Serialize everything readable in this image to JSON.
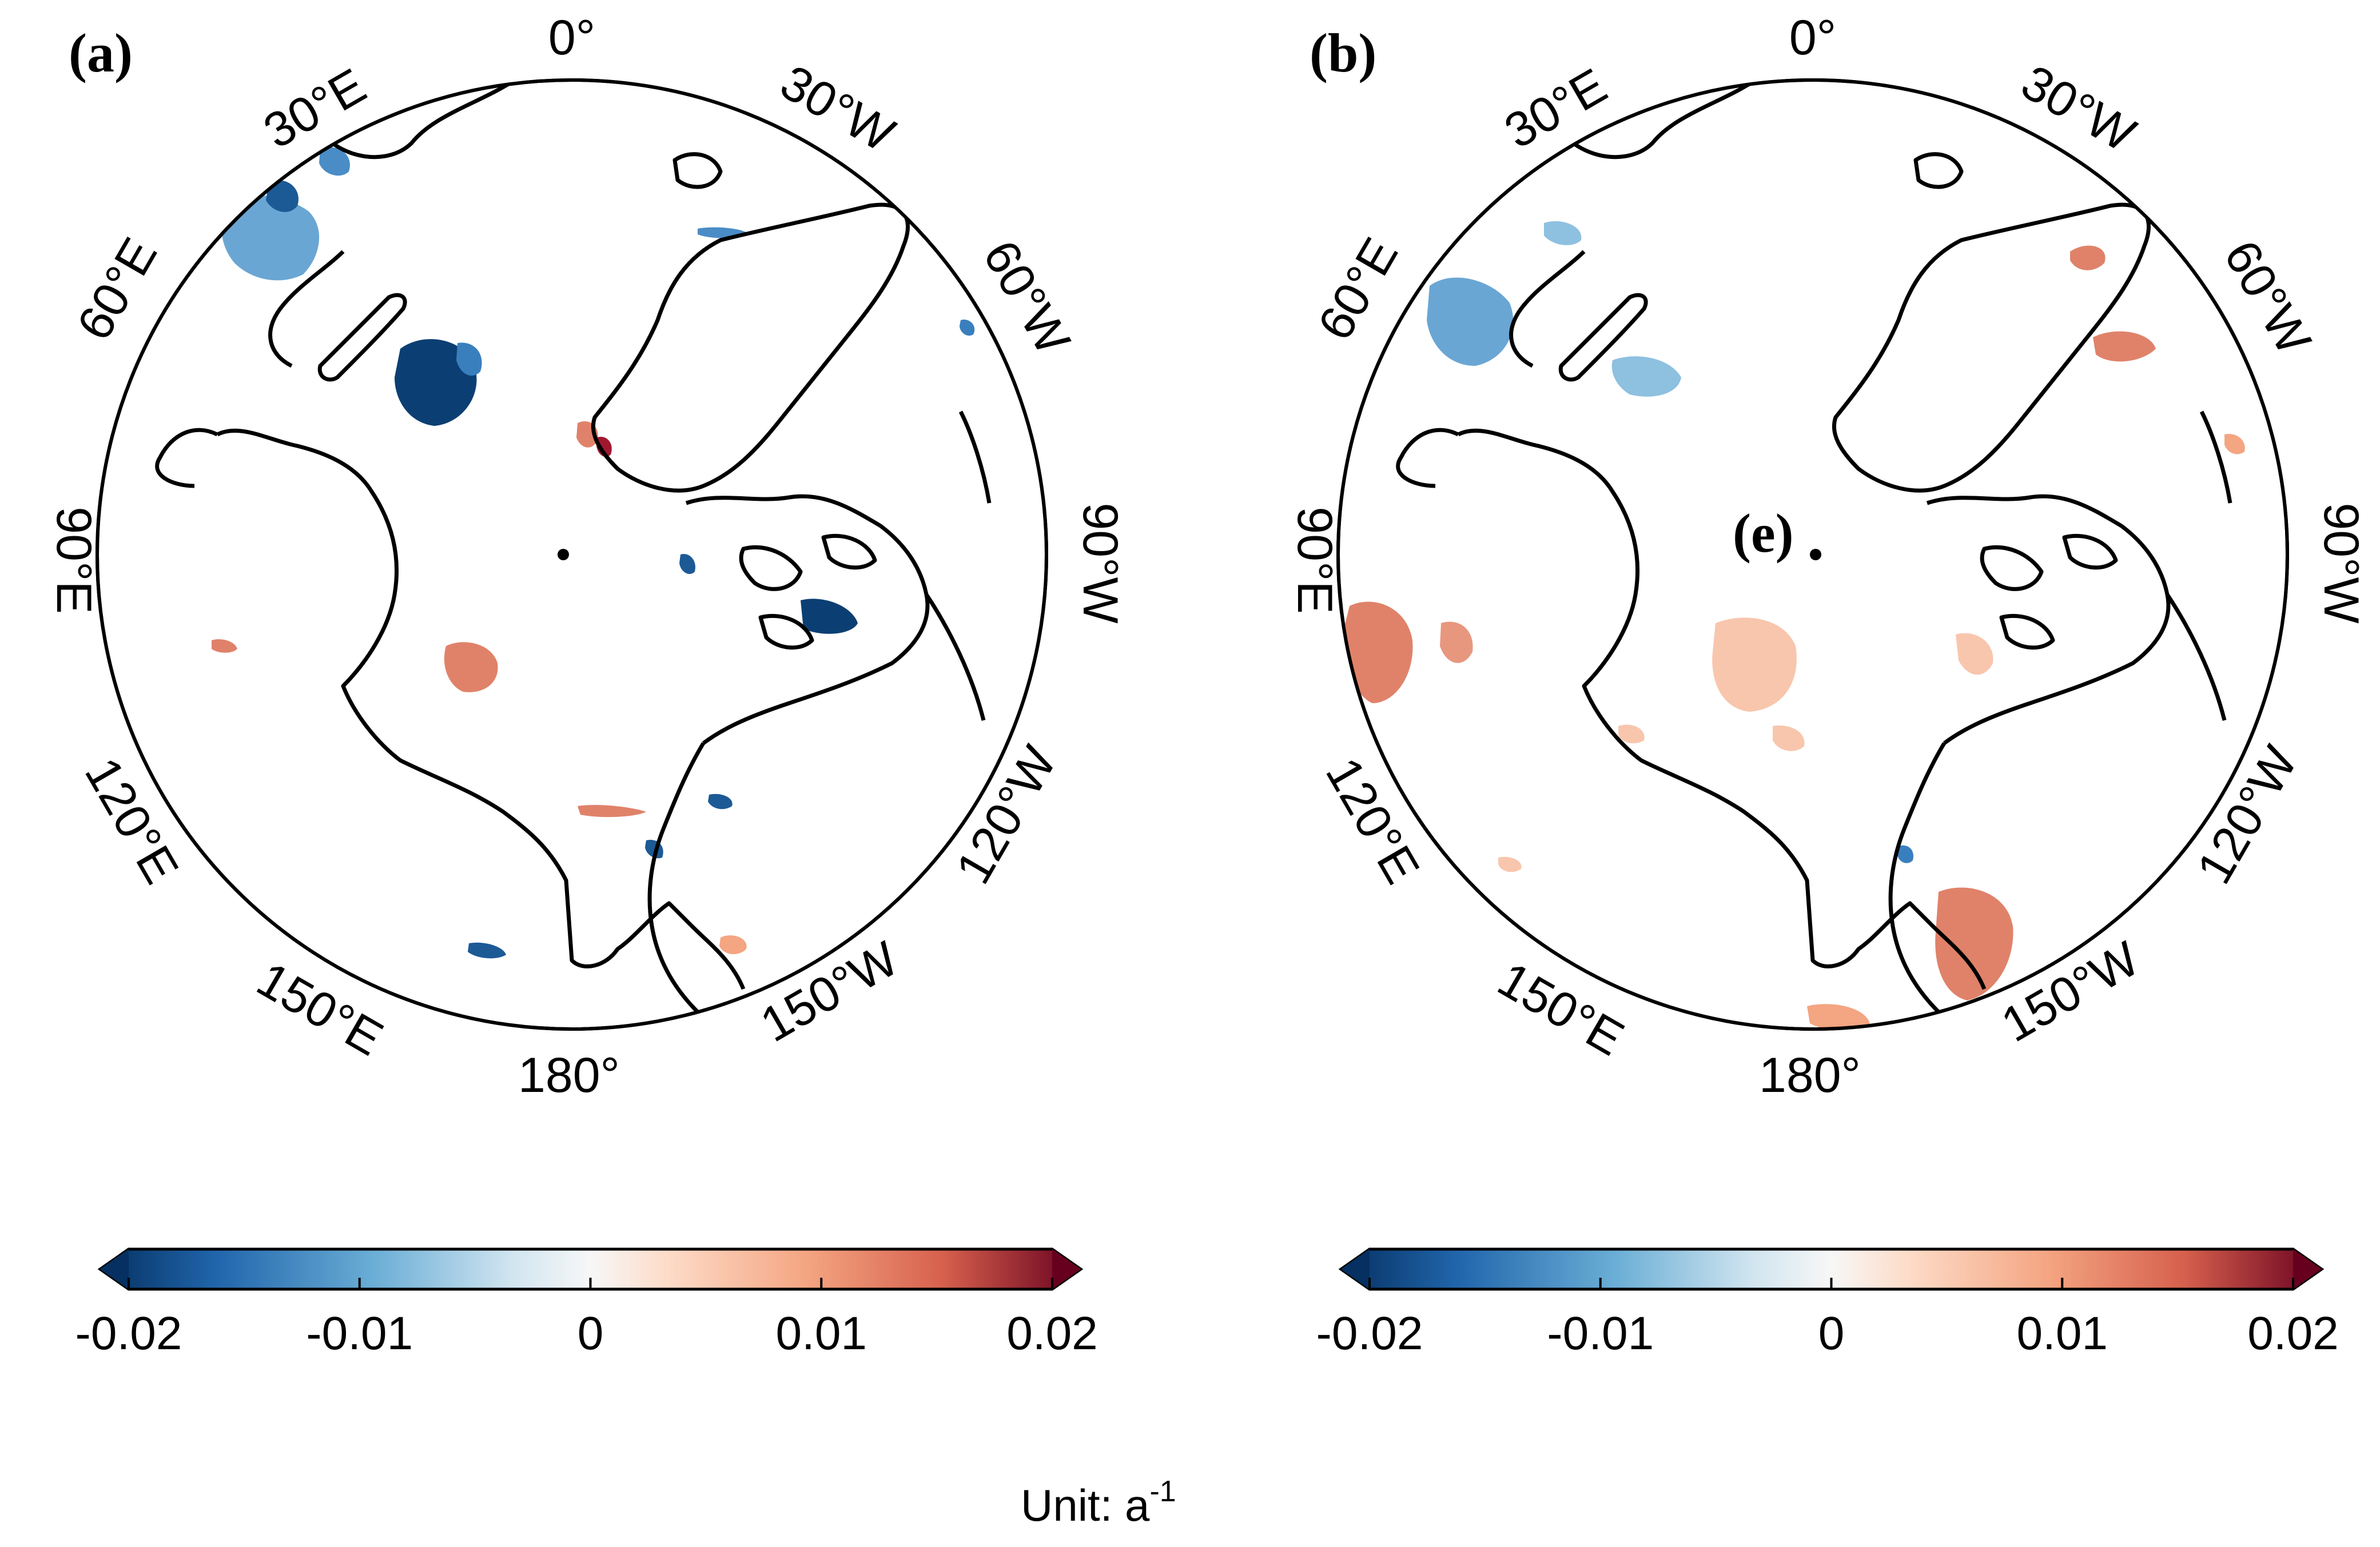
{
  "figure": {
    "unit_label": "Unit:  a",
    "unit_exponent": "-1"
  },
  "panels": [
    {
      "label": "(a)",
      "lon_labels": {
        "lon_0": "0°",
        "lon_30w": "30°W",
        "lon_60w": "60°W",
        "lon_90w": "90°W",
        "lon_120w": "120°W",
        "lon_150w": "150°W",
        "lon_180": "180°",
        "lon_150e": "150°E",
        "lon_120e": "120°E",
        "lon_90e": "90°E",
        "lon_60e": "60°E",
        "lon_30e": "30°E"
      },
      "colorbar": {
        "ticks": [
          "-0.02",
          "-0.01",
          "0",
          "0.01",
          "0.02"
        ],
        "range": [
          -0.02,
          0.02
        ]
      },
      "inner_label": ""
    },
    {
      "label": "(b)",
      "lon_labels": {
        "lon_0": "0°",
        "lon_30w": "30°W",
        "lon_60w": "60°W",
        "lon_90w": "90°W",
        "lon_120w": "120°W",
        "lon_150w": "150°W",
        "lon_180": "180°",
        "lon_150e": "150°E",
        "lon_120e": "120°E",
        "lon_90e": "90°E",
        "lon_60e": "60°E",
        "lon_30e": "30°E"
      },
      "colorbar": {
        "ticks": [
          "-0.02",
          "-0.01",
          "0",
          "0.01",
          "0.02"
        ],
        "range": [
          -0.02,
          0.02
        ]
      },
      "inner_label": "(e)"
    }
  ],
  "colors": {
    "strong_neg": "#0b3f73",
    "neg": "#3a7fbd",
    "light_neg": "#8ec0e0",
    "neutral": "#f7f7f7",
    "light_pos": "#f8c6ad",
    "pos": "#e0826a",
    "strong_pos": "#a01830",
    "coast": "#000000"
  }
}
